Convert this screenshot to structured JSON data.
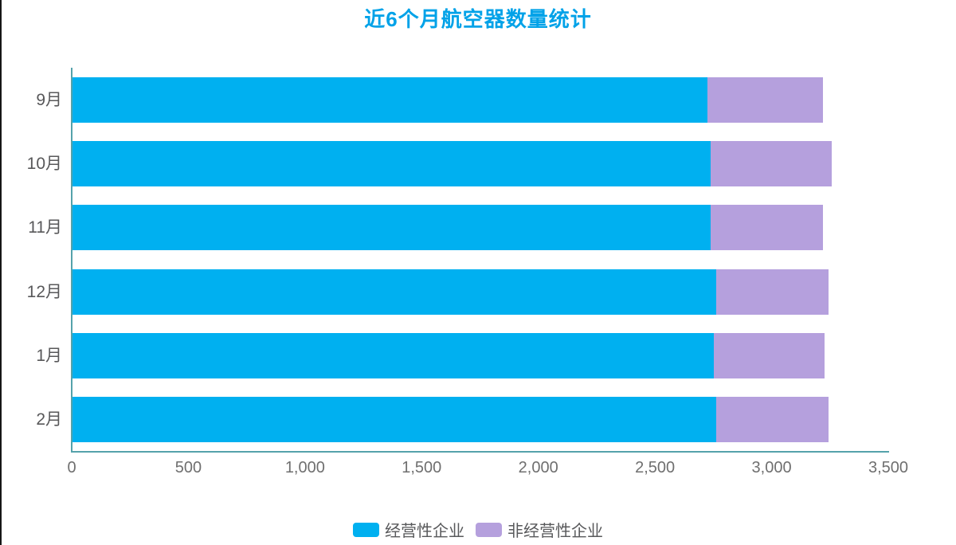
{
  "title": "近6个月航空器数量统计",
  "colors": {
    "title": "#00a2e8",
    "bar_primary": "#00b0f0",
    "bar_secondary": "#b5a0dd",
    "axis_line": "#55a2ab",
    "category_text": "#58585a",
    "tick_text": "#6f6f6f",
    "legend_text": "#58595b"
  },
  "legend": {
    "items": [
      {
        "label": "经营性企业",
        "color": "#00b0f0"
      },
      {
        "label": "非经营性企业",
        "color": "#b5a0dd"
      }
    ]
  },
  "chart_data": {
    "type": "bar",
    "orientation": "horizontal",
    "stacked": true,
    "title": "近6个月航空器数量统计",
    "categories": [
      "9月",
      "10月",
      "11月",
      "12月",
      "1月",
      "2月"
    ],
    "series": [
      {
        "name": "经营性企业",
        "color": "#00b0f0",
        "values": [
          2720,
          2735,
          2735,
          2760,
          2750,
          2760
        ]
      },
      {
        "name": "非经营性企业",
        "color": "#b5a0dd",
        "values": [
          495,
          520,
          480,
          480,
          475,
          480
        ]
      }
    ],
    "xlabel": "",
    "ylabel": "",
    "xlim": [
      0,
      3500
    ],
    "x_ticks": [
      "0",
      "500",
      "1,000",
      "1,500",
      "2,000",
      "2,500",
      "3,000",
      "3,500"
    ],
    "x_tick_values": [
      0,
      500,
      1000,
      1500,
      2000,
      2500,
      3000,
      3500
    ],
    "grid": false,
    "legend_position": "bottom"
  }
}
